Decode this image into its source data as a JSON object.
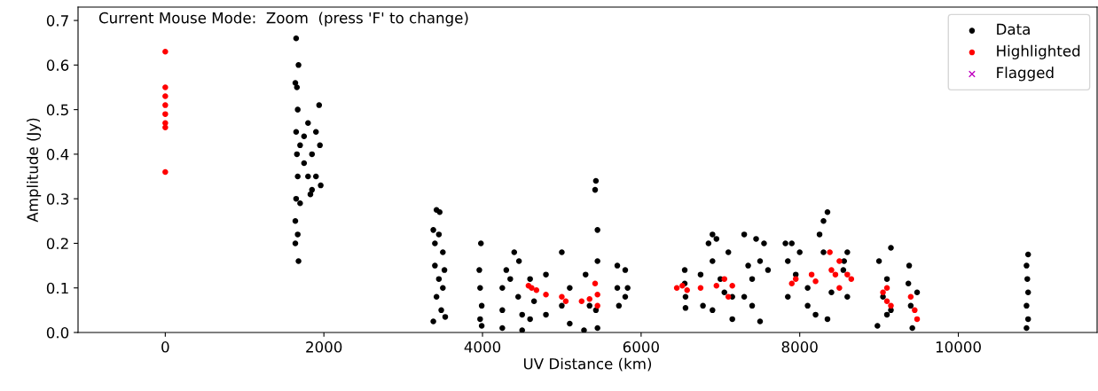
{
  "chart_data": {
    "type": "scatter",
    "xlabel": "UV Distance (km)",
    "ylabel": "Amplitude (Jy)",
    "annotations": [
      "Current Mouse Mode:  Zoom  (press 'F' to change)"
    ],
    "xlim": [
      -1100,
      11750
    ],
    "ylim": [
      0,
      0.73
    ],
    "xticks": [
      0,
      2000,
      4000,
      6000,
      8000,
      10000
    ],
    "yticks": [
      {
        "value": 0,
        "label": "0.0"
      },
      0.1,
      0.2,
      0.3,
      0.4,
      0.5,
      0.6,
      0.7
    ],
    "grid": false,
    "legend": "top right",
    "series": [
      {
        "name": "Data",
        "color": "#000000",
        "marker": "circle",
        "x": [
          1650,
          1680,
          1640,
          1660,
          1670,
          1940,
          1650,
          1660,
          1670,
          1650,
          1700,
          1750,
          1800,
          1800,
          1850,
          1900,
          1900,
          1950,
          1960,
          1700,
          1830,
          1640,
          1670,
          1640,
          1680,
          1750,
          1850,
          3420,
          3460,
          3380,
          3400,
          3450,
          3500,
          3400,
          3450,
          3500,
          3420,
          3480,
          3380,
          3530,
          3520,
          3980,
          3960,
          3970,
          3990,
          3970,
          3990,
          4400,
          4460,
          4300,
          4250,
          4250,
          4250,
          4350,
          4450,
          4500,
          4500,
          4600,
          4650,
          4600,
          4800,
          4800,
          5000,
          5000,
          5100,
          5100,
          5300,
          5350,
          5280,
          5430,
          5420,
          5450,
          5450,
          5430,
          5450,
          5700,
          5700,
          5720,
          5800,
          5830,
          5800,
          6550,
          6550,
          6560,
          6560,
          6750,
          6780,
          6900,
          6950,
          6850,
          6900,
          7000,
          6900,
          7100,
          7150,
          7150,
          7050,
          7300,
          7450,
          7550,
          7350,
          7400,
          7500,
          7300,
          7500,
          7400,
          7600,
          7820,
          7900,
          7850,
          7850,
          7950,
          8000,
          8100,
          8100,
          8250,
          8300,
          8350,
          8300,
          8200,
          8350,
          8400,
          8560,
          8600,
          8600,
          8550,
          9000,
          9150,
          9100,
          9050,
          9100,
          8980,
          9150,
          9380,
          9370,
          9400,
          9420,
          9480,
          10880,
          10860,
          10870,
          10880,
          10860,
          10880,
          10860
        ],
        "values": [
          0.66,
          0.6,
          0.56,
          0.55,
          0.5,
          0.51,
          0.45,
          0.4,
          0.35,
          0.3,
          0.42,
          0.38,
          0.47,
          0.35,
          0.4,
          0.45,
          0.35,
          0.42,
          0.33,
          0.29,
          0.31,
          0.25,
          0.22,
          0.2,
          0.16,
          0.44,
          0.32,
          0.275,
          0.27,
          0.23,
          0.2,
          0.22,
          0.18,
          0.15,
          0.12,
          0.1,
          0.08,
          0.05,
          0.025,
          0.035,
          0.14,
          0.2,
          0.14,
          0.1,
          0.06,
          0.03,
          0.015,
          0.18,
          0.16,
          0.14,
          0.1,
          0.05,
          0.01,
          0.12,
          0.08,
          0.04,
          0.005,
          0.12,
          0.07,
          0.03,
          0.13,
          0.04,
          0.18,
          0.06,
          0.1,
          0.02,
          0.13,
          0.06,
          0.005,
          0.34,
          0.32,
          0.23,
          0.16,
          0.05,
          0.01,
          0.15,
          0.1,
          0.06,
          0.14,
          0.1,
          0.08,
          0.14,
          0.11,
          0.08,
          0.055,
          0.13,
          0.06,
          0.22,
          0.21,
          0.2,
          0.16,
          0.12,
          0.05,
          0.18,
          0.08,
          0.03,
          0.09,
          0.22,
          0.21,
          0.2,
          0.15,
          0.12,
          0.16,
          0.08,
          0.025,
          0.06,
          0.14,
          0.2,
          0.2,
          0.16,
          0.08,
          0.13,
          0.18,
          0.1,
          0.06,
          0.22,
          0.25,
          0.27,
          0.18,
          0.04,
          0.03,
          0.09,
          0.16,
          0.18,
          0.08,
          0.14,
          0.16,
          0.19,
          0.12,
          0.08,
          0.04,
          0.015,
          0.05,
          0.15,
          0.11,
          0.06,
          0.01,
          0.09,
          0.175,
          0.15,
          0.12,
          0.09,
          0.06,
          0.03,
          0.01
        ]
      },
      {
        "name": "Highlighted",
        "color": "#ff0000",
        "marker": "circle",
        "x": [
          0,
          0,
          0,
          0,
          0,
          0,
          0,
          0,
          4580,
          4620,
          4680,
          4800,
          5000,
          5050,
          5250,
          5350,
          5420,
          5450,
          5450,
          6450,
          6520,
          6580,
          6750,
          6950,
          7050,
          7100,
          7150,
          7900,
          7950,
          8150,
          8200,
          8380,
          8400,
          8450,
          8500,
          8500,
          8600,
          8650,
          9050,
          9100,
          9150,
          9400,
          9450,
          9480,
          9100
        ],
        "values": [
          0.63,
          0.55,
          0.53,
          0.51,
          0.49,
          0.47,
          0.46,
          0.36,
          0.105,
          0.1,
          0.095,
          0.085,
          0.08,
          0.07,
          0.07,
          0.075,
          0.11,
          0.085,
          0.06,
          0.1,
          0.105,
          0.095,
          0.1,
          0.105,
          0.12,
          0.08,
          0.105,
          0.11,
          0.12,
          0.13,
          0.115,
          0.18,
          0.14,
          0.13,
          0.16,
          0.1,
          0.13,
          0.12,
          0.09,
          0.1,
          0.06,
          0.08,
          0.05,
          0.03,
          0.07
        ]
      },
      {
        "name": "Flagged",
        "color": "#bf00bf",
        "marker": "cross"
      }
    ]
  }
}
